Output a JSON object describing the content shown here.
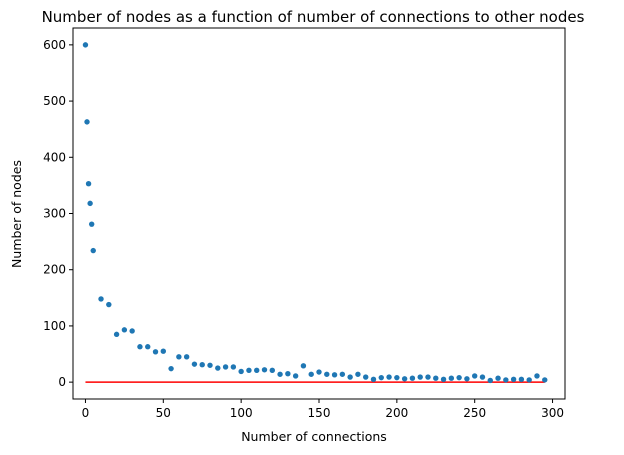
{
  "chart_data": {
    "type": "scatter",
    "title": "Number of nodes as a function of number of connections to other nodes",
    "xlabel": "Number of connections",
    "ylabel": "Number of nodes",
    "xlim": [
      -8,
      308
    ],
    "ylim": [
      -30,
      630
    ],
    "xticks": [
      0,
      50,
      100,
      150,
      200,
      250,
      300
    ],
    "yticks": [
      0,
      100,
      200,
      300,
      400,
      500,
      600
    ],
    "grid": false,
    "colors": {
      "points": "#1f77b4",
      "line": "#ff0000",
      "axes": "#000000"
    },
    "points": [
      [
        0,
        600
      ],
      [
        1,
        463
      ],
      [
        2,
        353
      ],
      [
        3,
        318
      ],
      [
        4,
        281
      ],
      [
        5,
        234
      ],
      [
        10,
        148
      ],
      [
        15,
        138
      ],
      [
        20,
        85
      ],
      [
        25,
        93
      ],
      [
        30,
        91
      ],
      [
        35,
        63
      ],
      [
        40,
        63
      ],
      [
        45,
        54
      ],
      [
        50,
        55
      ],
      [
        55,
        24
      ],
      [
        60,
        45
      ],
      [
        65,
        45
      ],
      [
        70,
        32
      ],
      [
        75,
        31
      ],
      [
        80,
        30
      ],
      [
        85,
        25
      ],
      [
        90,
        27
      ],
      [
        95,
        27
      ],
      [
        100,
        19
      ],
      [
        105,
        21
      ],
      [
        110,
        21
      ],
      [
        115,
        22
      ],
      [
        120,
        21
      ],
      [
        125,
        14
      ],
      [
        130,
        15
      ],
      [
        135,
        11
      ],
      [
        140,
        29
      ],
      [
        145,
        14
      ],
      [
        150,
        18
      ],
      [
        155,
        14
      ],
      [
        160,
        13
      ],
      [
        165,
        14
      ],
      [
        170,
        9
      ],
      [
        175,
        14
      ],
      [
        180,
        9
      ],
      [
        185,
        5
      ],
      [
        190,
        8
      ],
      [
        195,
        9
      ],
      [
        200,
        8
      ],
      [
        205,
        6
      ],
      [
        210,
        7
      ],
      [
        215,
        9
      ],
      [
        220,
        9
      ],
      [
        225,
        7
      ],
      [
        230,
        5
      ],
      [
        235,
        7
      ],
      [
        240,
        8
      ],
      [
        245,
        6
      ],
      [
        250,
        11
      ],
      [
        255,
        9
      ],
      [
        260,
        3
      ],
      [
        265,
        7
      ],
      [
        270,
        4
      ],
      [
        275,
        5
      ],
      [
        280,
        5
      ],
      [
        285,
        4
      ],
      [
        290,
        11
      ],
      [
        295,
        4
      ]
    ],
    "line": {
      "x": [
        0,
        295
      ],
      "y": [
        0,
        0
      ]
    }
  }
}
